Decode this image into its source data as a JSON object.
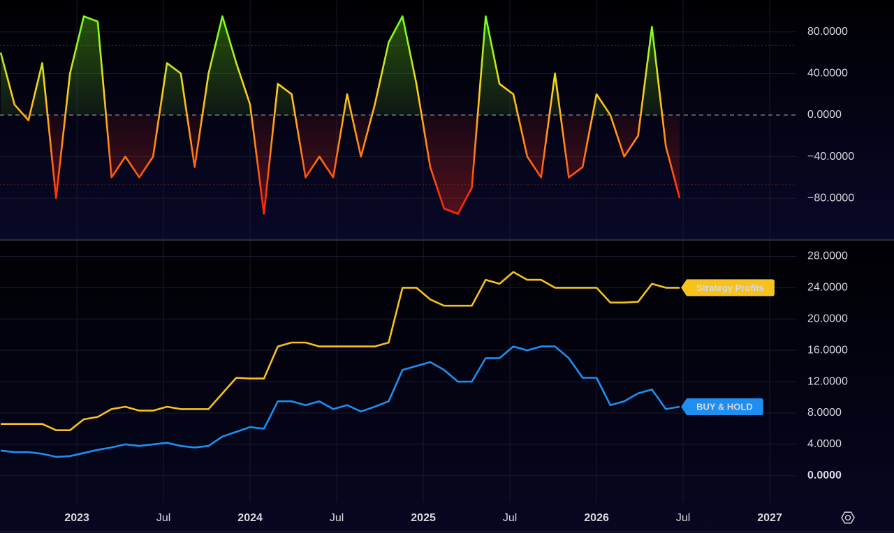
{
  "chart_data": [
    {
      "type": "line",
      "x": [
        2022.56,
        2022.64,
        2022.72,
        2022.8,
        2022.88,
        2022.96,
        2023.04,
        2023.12,
        2023.2,
        2023.28,
        2023.36,
        2023.44,
        2023.52,
        2023.6,
        2023.68,
        2023.76,
        2023.84,
        2023.92,
        2024,
        2024.08,
        2024.16,
        2024.24,
        2024.32,
        2024.4,
        2024.48,
        2024.56,
        2024.64,
        2024.72,
        2024.8,
        2024.88,
        2024.96,
        2025.04,
        2025.12,
        2025.2,
        2025.28,
        2025.36,
        2025.44,
        2025.52,
        2025.6,
        2025.68,
        2025.76,
        2025.84,
        2025.92,
        2026,
        2026.08,
        2026.16,
        2026.24,
        2026.32,
        2026.4,
        2026.48
      ],
      "series": [
        {
          "values": [
            60,
            10,
            -5,
            50,
            -80,
            40,
            95,
            90,
            -60,
            -40,
            -60,
            -40,
            50,
            40,
            -50,
            40,
            95,
            50,
            10,
            -95,
            30,
            20,
            -60,
            -40,
            -60,
            20,
            -40,
            10,
            70,
            95,
            30,
            -50,
            -90,
            -95,
            -70,
            95,
            30,
            20,
            -40,
            -60,
            40,
            -60,
            -50,
            20,
            0,
            -40,
            -20,
            85,
            -30,
            -80
          ],
          "colors": [
            "#7cff1a",
            "#ffd21a",
            "#ff8a1a",
            "#ff2a0a"
          ]
        }
      ],
      "xlim": [
        2022.556,
        2027.153
      ],
      "ylim": [
        -119.5,
        110.7
      ],
      "yticks": [
        {
          "value": 80,
          "label": "80.0000"
        },
        {
          "value": 40,
          "label": "40.0000"
        },
        {
          "value": 0,
          "label": "0.0000"
        },
        {
          "value": -40,
          "label": "−40.0000"
        },
        {
          "value": -80,
          "label": "−80.0000"
        }
      ],
      "levels": [
        67,
        -67
      ],
      "grid": true
    },
    {
      "type": "line",
      "x": [
        2022.56,
        2022.64,
        2022.72,
        2022.8,
        2022.88,
        2022.96,
        2023.04,
        2023.12,
        2023.2,
        2023.28,
        2023.36,
        2023.44,
        2023.52,
        2023.6,
        2023.68,
        2023.76,
        2023.84,
        2023.92,
        2024,
        2024.08,
        2024.16,
        2024.24,
        2024.32,
        2024.4,
        2024.48,
        2024.56,
        2024.64,
        2024.72,
        2024.8,
        2024.88,
        2024.96,
        2025.04,
        2025.12,
        2025.2,
        2025.28,
        2025.36,
        2025.44,
        2025.52,
        2025.6,
        2025.68,
        2025.76,
        2025.84,
        2025.92,
        2026,
        2026.08,
        2026.16,
        2026.24,
        2026.32,
        2026.4,
        2026.48
      ],
      "series": [
        {
          "name": "Strategy Profits",
          "color": "#f7c21b",
          "values": [
            6.6,
            6.6,
            6.6,
            6.6,
            5.8,
            5.8,
            7.2,
            7.5,
            8.5,
            8.8,
            8.3,
            8.3,
            8.8,
            8.5,
            8.5,
            8.5,
            10.5,
            12.5,
            12.4,
            12.4,
            16.5,
            17,
            17,
            16.5,
            16.5,
            16.5,
            16.5,
            16.5,
            17,
            24,
            24,
            22.5,
            21.7,
            21.7,
            21.7,
            25,
            24.5,
            26,
            25,
            25,
            24,
            24,
            24,
            24,
            22.1,
            22.1,
            22.2,
            24.5,
            24,
            24
          ]
        },
        {
          "name": "BUY & HOLD",
          "color": "#1e8ff0",
          "values": [
            3.2,
            3,
            3,
            2.8,
            2.4,
            2.5,
            2.9,
            3.3,
            3.6,
            4,
            3.8,
            4,
            4.2,
            3.8,
            3.6,
            3.8,
            5,
            5.6,
            6.2,
            6,
            9.5,
            9.5,
            9,
            9.5,
            8.5,
            9,
            8.2,
            8.8,
            9.5,
            13.5,
            14,
            14.5,
            13.5,
            12,
            12,
            15,
            15,
            16.5,
            16,
            16.5,
            16.5,
            15,
            12.5,
            12.5,
            9,
            9.5,
            10.5,
            11,
            8.5,
            8.8
          ]
        }
      ],
      "xlim": [
        2022.556,
        2027.153
      ],
      "ylim": [
        -3.4,
        30
      ],
      "yticks": [
        {
          "value": 28,
          "label": "28.0000"
        },
        {
          "value": 24,
          "label": "24.0000"
        },
        {
          "value": 20,
          "label": "20.0000"
        },
        {
          "value": 16,
          "label": "16.0000"
        },
        {
          "value": 12,
          "label": "12.0000"
        },
        {
          "value": 8,
          "label": "8.0000"
        },
        {
          "value": 4,
          "label": "4.0000"
        },
        {
          "value": 0,
          "label": "0.0000"
        }
      ],
      "xticks": [
        2023,
        {
          "value": 2023.5,
          "label": "Jul"
        },
        2024,
        {
          "value": 2024.5,
          "label": "Jul"
        },
        2025,
        {
          "value": 2025.5,
          "label": "Jul"
        },
        2026,
        {
          "value": 2026.5,
          "label": "Jul"
        },
        2027
      ],
      "grid": true
    }
  ]
}
